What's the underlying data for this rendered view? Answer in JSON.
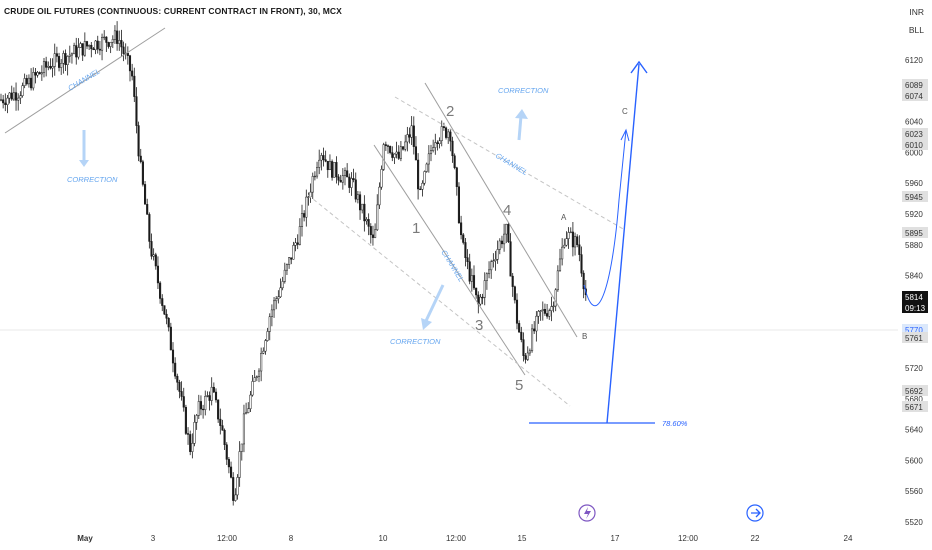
{
  "header": {
    "title": "CRUDE OIL FUTURES (CONTINUOUS: CURRENT CONTRACT IN FRONT), 30, MCX",
    "currency": "INR",
    "unit": "BLL"
  },
  "colors": {
    "up": "#1a1a1a",
    "down": "#1a1a1a",
    "projection": "#2962ff",
    "annotation": "#64a5ef",
    "channel": "#9e9e9e",
    "wave_label": "#7a7a7a"
  },
  "chart_data": {
    "type": "candlestick",
    "instrument": "CRUDE OIL FUTURES (CONTINUOUS: CURRENT CONTRACT IN FRONT)",
    "interval": "30",
    "exchange": "MCX",
    "ylim": [
      5515,
      6150
    ],
    "y_ticks": [
      6120,
      6080,
      6040,
      6000,
      5960,
      5920,
      5880,
      5840,
      5800,
      5760,
      5720,
      5680,
      5640,
      5600,
      5560,
      5520
    ],
    "x_tick_labels": [
      "May",
      "3",
      "12:00",
      "8",
      "10",
      "12:00",
      "15",
      "17",
      "12:00",
      "22",
      "24"
    ],
    "price_tags": [
      {
        "value": "6089",
        "style": "gray"
      },
      {
        "value": "6074",
        "style": "gray"
      },
      {
        "value": "6023",
        "style": "gray"
      },
      {
        "value": "6010",
        "style": "gray"
      },
      {
        "value": "5945",
        "style": "gray"
      },
      {
        "value": "5895",
        "style": "gray"
      },
      {
        "value": "5814",
        "countdown": "09:13",
        "style": "current"
      },
      {
        "value": "5770",
        "style": "blue"
      },
      {
        "value": "5761",
        "style": "gray"
      },
      {
        "value": "5692",
        "style": "gray"
      },
      {
        "value": "5671",
        "style": "gray"
      }
    ],
    "key_price_points": [
      {
        "label": "channel start high",
        "price": 6150
      },
      {
        "label": "low",
        "price": 5553
      },
      {
        "label": "2",
        "price": 6030
      },
      {
        "label": "1",
        "price": 5940
      },
      {
        "label": "4",
        "price": 5900
      },
      {
        "label": "3",
        "price": 5790
      },
      {
        "label": "5",
        "price": 5731
      },
      {
        "label": "A",
        "price": 5895
      },
      {
        "label": "last",
        "price": 5814
      }
    ],
    "fib_level": {
      "label": "78.60%",
      "price": 5645
    },
    "wave_labels": [
      "1",
      "2",
      "3",
      "4",
      "5"
    ],
    "abc_labels": [
      "A",
      "B",
      "C"
    ],
    "annotations": [
      "CHANNEL",
      "CORRECTION",
      "CORRECTION",
      "CORRECTION",
      "CHANNEL",
      "CHANNEL"
    ]
  }
}
